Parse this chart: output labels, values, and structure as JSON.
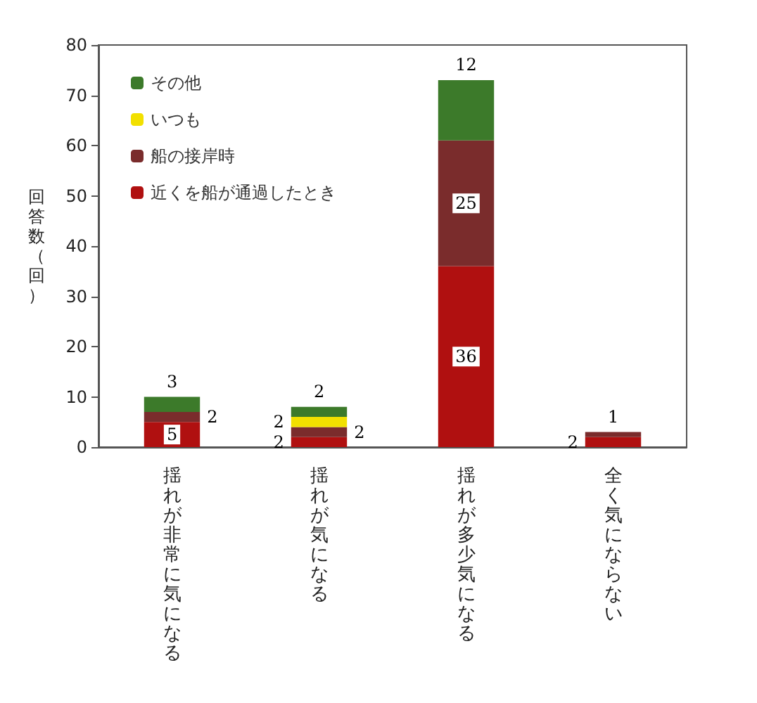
{
  "chart_data": {
    "type": "bar",
    "stacked": true,
    "ylabel": "回答数（回）",
    "categories": [
      "揺れが非常に気になる",
      "揺れが気になる",
      "揺れが多少気になる",
      "全く気にならない"
    ],
    "series": [
      {
        "name": "近くを船が通過したとき",
        "color": "#b01010",
        "values": [
          5,
          2,
          36,
          2
        ],
        "value_labels": [
          "5",
          "2",
          "36",
          "2"
        ]
      },
      {
        "name": "船の接岸時",
        "color": "#7a2c2c",
        "values": [
          2,
          2,
          25,
          1
        ],
        "value_labels": [
          "2",
          "2",
          "25",
          "1"
        ]
      },
      {
        "name": "いつも",
        "color": "#f2e000",
        "values": [
          0,
          2,
          0,
          0
        ],
        "value_labels": [
          null,
          "2",
          null,
          null
        ]
      },
      {
        "name": "その他",
        "color": "#3c7a2a",
        "values": [
          3,
          2,
          12,
          0
        ],
        "value_labels": [
          "3",
          "2",
          "12",
          null
        ]
      }
    ],
    "ylim": [
      0,
      80
    ],
    "yticks": [
      0,
      10,
      20,
      30,
      40,
      50,
      60,
      70,
      80
    ],
    "grid": false,
    "legend": "top left"
  }
}
